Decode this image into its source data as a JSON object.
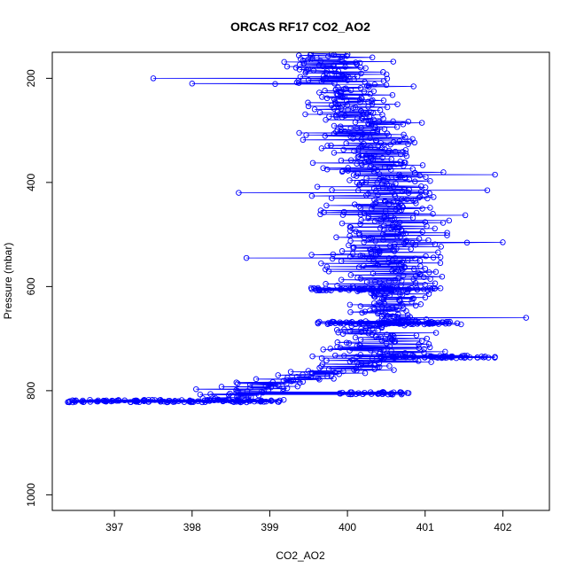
{
  "chart_data": {
    "type": "scatter",
    "title": "ORCAS RF17 CO2_AO2",
    "xlabel": "CO2_AO2",
    "ylabel": "Pressure (mbar)",
    "xlim": [
      396.2,
      402.6
    ],
    "ylim": [
      1030,
      150
    ],
    "y_reversed": true,
    "x_ticks": [
      397,
      398,
      399,
      400,
      401,
      402
    ],
    "y_ticks": [
      200,
      400,
      600,
      800,
      1000
    ],
    "grid": false,
    "legend": "none",
    "style": "points connected by lines (type o)",
    "series_color": "#0000ff",
    "envelope": {
      "description": "profile envelope used to render dense point cloud: [pressure, co2_min, co2_max]",
      "rows": [
        [
          152,
          399.0,
          400.5
        ],
        [
          180,
          398.9,
          400.8
        ],
        [
          210,
          398.9,
          400.9
        ],
        [
          240,
          399.1,
          400.9
        ],
        [
          270,
          399.1,
          401.0
        ],
        [
          300,
          399.2,
          401.1
        ],
        [
          330,
          399.3,
          401.2
        ],
        [
          360,
          399.4,
          401.4
        ],
        [
          390,
          399.4,
          401.5
        ],
        [
          420,
          399.3,
          401.6
        ],
        [
          450,
          399.2,
          401.6
        ],
        [
          480,
          399.2,
          401.7
        ],
        [
          510,
          399.2,
          401.7
        ],
        [
          540,
          399.3,
          401.6
        ],
        [
          570,
          399.4,
          401.6
        ],
        [
          600,
          399.5,
          401.5
        ],
        [
          630,
          399.6,
          401.4
        ],
        [
          660,
          399.8,
          401.3
        ],
        [
          690,
          399.6,
          401.3
        ],
        [
          720,
          399.3,
          401.5
        ],
        [
          750,
          398.9,
          401.6
        ],
        [
          780,
          398.4,
          400.4
        ],
        [
          800,
          397.8,
          399.7
        ],
        [
          815,
          397.3,
          399.2
        ],
        [
          822,
          396.5,
          399.2
        ]
      ]
    },
    "outliers": [
      {
        "x": 397.5,
        "y": 200
      },
      {
        "x": 398.0,
        "y": 210
      },
      {
        "x": 398.6,
        "y": 420
      },
      {
        "x": 398.7,
        "y": 545
      },
      {
        "x": 402.3,
        "y": 660
      },
      {
        "x": 401.9,
        "y": 735
      },
      {
        "x": 402.0,
        "y": 515
      },
      {
        "x": 401.8,
        "y": 415
      },
      {
        "x": 401.9,
        "y": 385
      },
      {
        "x": 399.9,
        "y": 805
      },
      {
        "x": 400.4,
        "y": 805
      },
      {
        "x": 396.4,
        "y": 822
      },
      {
        "x": 396.6,
        "y": 822
      }
    ],
    "dense_bands": [
      {
        "y": 820,
        "x_min": 396.4,
        "x_max": 399.2
      },
      {
        "y": 735,
        "x_min": 400.4,
        "x_max": 401.9
      },
      {
        "y": 670,
        "x_min": 399.6,
        "x_max": 401.5
      },
      {
        "y": 605,
        "x_min": 399.5,
        "x_max": 401.2
      },
      {
        "y": 805,
        "x_min": 399.9,
        "x_max": 400.8
      }
    ]
  }
}
